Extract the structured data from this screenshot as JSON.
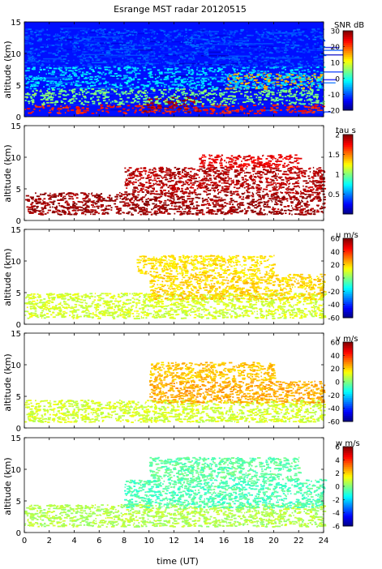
{
  "figure": {
    "title": "Esrange MST radar 20120515",
    "xlabel": "time (UT)",
    "xlim": [
      0,
      24
    ],
    "xticks": [
      0,
      2,
      4,
      6,
      8,
      10,
      12,
      14,
      16,
      18,
      20,
      22,
      24
    ]
  },
  "chart_data": [
    {
      "type": "heatmap",
      "quantity": "SNR",
      "ylabel": "altitude (km)",
      "ylim": [
        0,
        15
      ],
      "yticks": [
        0,
        5,
        10,
        15
      ],
      "colorbar": {
        "label": "SNR dB",
        "range": [
          -20,
          30
        ],
        "ticks": [
          30,
          20,
          10,
          0,
          -10,
          -20
        ]
      },
      "field": {
        "background_value": -13,
        "layers": [
          {
            "x": [
              0,
              24
            ],
            "alt": [
              0.6,
              2.0
            ],
            "value": 22
          },
          {
            "x": [
              9.5,
              14
            ],
            "alt": [
              0.8,
              3.2
            ],
            "value": 28
          },
          {
            "x": [
              0,
              24
            ],
            "alt": [
              2.0,
              4.5
            ],
            "value": 5
          },
          {
            "x": [
              16,
              24
            ],
            "alt": [
              4.5,
              7.0
            ],
            "value": 15
          },
          {
            "x": [
              0,
              24
            ],
            "alt": [
              4.5,
              8.0
            ],
            "value": -3
          },
          {
            "x": [
              0,
              24
            ],
            "alt": [
              8.0,
              14.0
            ],
            "value": -10
          }
        ]
      }
    },
    {
      "type": "heatmap",
      "quantity": "tau",
      "ylabel": "altitude (km)",
      "ylim": [
        0,
        15
      ],
      "yticks": [
        0,
        5,
        10,
        15
      ],
      "colorbar": {
        "label": "tau s",
        "range": [
          0,
          2
        ],
        "ticks": [
          2,
          1.5,
          1,
          0.5
        ]
      },
      "field": {
        "background_value": null,
        "layers": [
          {
            "x": [
              0,
              24
            ],
            "alt": [
              1.0,
              4.5
            ],
            "value": 1.95
          },
          {
            "x": [
              8,
              24
            ],
            "alt": [
              4.5,
              8.5
            ],
            "value": 1.9
          },
          {
            "x": [
              14,
              22
            ],
            "alt": [
              8.5,
              10.5
            ],
            "value": 1.8
          }
        ]
      }
    },
    {
      "type": "heatmap",
      "quantity": "u",
      "ylabel": "altitude (km)",
      "ylim": [
        0,
        15
      ],
      "yticks": [
        0,
        5,
        10,
        15
      ],
      "colorbar": {
        "label": "u m/s",
        "range": [
          -60,
          60
        ],
        "ticks": [
          60,
          40,
          20,
          0,
          -20,
          -40,
          -60
        ]
      },
      "field": {
        "background_value": null,
        "layers": [
          {
            "x": [
              0,
              24
            ],
            "alt": [
              1.0,
              5.0
            ],
            "value": 10
          },
          {
            "x": [
              10,
              24
            ],
            "alt": [
              4.0,
              8.0
            ],
            "value": 20
          },
          {
            "x": [
              9,
              20
            ],
            "alt": [
              8.0,
              11.0
            ],
            "value": 18
          }
        ]
      }
    },
    {
      "type": "heatmap",
      "quantity": "v",
      "ylabel": "altitude (km)",
      "ylim": [
        0,
        15
      ],
      "yticks": [
        0,
        5,
        10,
        15
      ],
      "colorbar": {
        "label": "v m/s",
        "range": [
          -60,
          60
        ],
        "ticks": [
          60,
          40,
          20,
          0,
          -20,
          -40,
          -60
        ]
      },
      "field": {
        "background_value": null,
        "layers": [
          {
            "x": [
              0,
              24
            ],
            "alt": [
              1.0,
              4.5
            ],
            "value": 10
          },
          {
            "x": [
              10,
              24
            ],
            "alt": [
              4.0,
              7.5
            ],
            "value": 25
          },
          {
            "x": [
              10,
              20
            ],
            "alt": [
              7.5,
              10.5
            ],
            "value": 22
          }
        ]
      }
    },
    {
      "type": "heatmap",
      "quantity": "w",
      "ylabel": "altitude (km)",
      "ylim": [
        0,
        15
      ],
      "yticks": [
        0,
        5,
        10,
        15
      ],
      "colorbar": {
        "label": "w m/s",
        "range": [
          -6,
          6
        ],
        "ticks": [
          6,
          4,
          2,
          0,
          -2,
          -4,
          -6
        ]
      },
      "field": {
        "background_value": null,
        "layers": [
          {
            "x": [
              0,
              24
            ],
            "alt": [
              1.0,
              4.5
            ],
            "value": 0.6
          },
          {
            "x": [
              8,
              24
            ],
            "alt": [
              4.0,
              8.5
            ],
            "value": -0.6
          },
          {
            "x": [
              10,
              22
            ],
            "alt": [
              8.5,
              12.0
            ],
            "value": -0.4
          }
        ]
      }
    }
  ]
}
